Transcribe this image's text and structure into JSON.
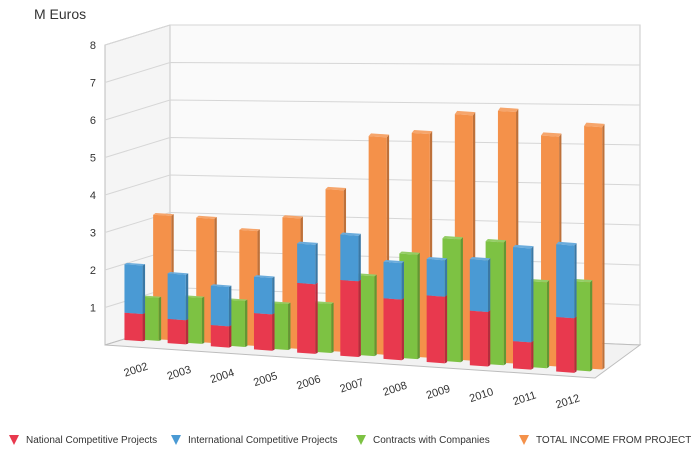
{
  "chart_data": {
    "type": "bar",
    "title": "",
    "ylabel": "M Euros",
    "xlabel": "",
    "ylim": [
      0,
      8
    ],
    "yticks": [
      "1",
      "2",
      "3",
      "4",
      "5",
      "6",
      "7",
      "8"
    ],
    "grid": true,
    "legend_position": "bottom",
    "categories": [
      "2002",
      "2003",
      "2004",
      "2005",
      "2006",
      "2007",
      "2008",
      "2009",
      "2010",
      "2011",
      "2012"
    ],
    "series": [
      {
        "name": "National Competitive Projects",
        "color": "#e8394e",
        "values": [
          0.9,
          0.8,
          0.7,
          1.2,
          2.3,
          2.5,
          2.0,
          2.2,
          1.8,
          0.9,
          1.8
        ],
        "stack": "a"
      },
      {
        "name": "International Competitive Projects",
        "color": "#4a9ad4",
        "values": [
          1.6,
          1.5,
          1.3,
          1.2,
          1.3,
          1.5,
          1.2,
          1.2,
          1.7,
          3.1,
          2.4
        ],
        "stack": "a"
      },
      {
        "name": "Contracts with Companies",
        "color": "#7dc243",
        "values": [
          1.4,
          1.5,
          1.5,
          1.5,
          1.6,
          2.6,
          3.4,
          4.0,
          4.0,
          2.8,
          2.9
        ],
        "stack": "b"
      },
      {
        "name": "TOTAL INCOME FROM PROJECTS",
        "color": "#f4914a",
        "values": [
          4.0,
          4.0,
          3.7,
          4.2,
          5.2,
          7.0,
          7.2,
          7.9,
          8.1,
          7.4,
          7.8
        ],
        "stack": "c"
      }
    ]
  }
}
